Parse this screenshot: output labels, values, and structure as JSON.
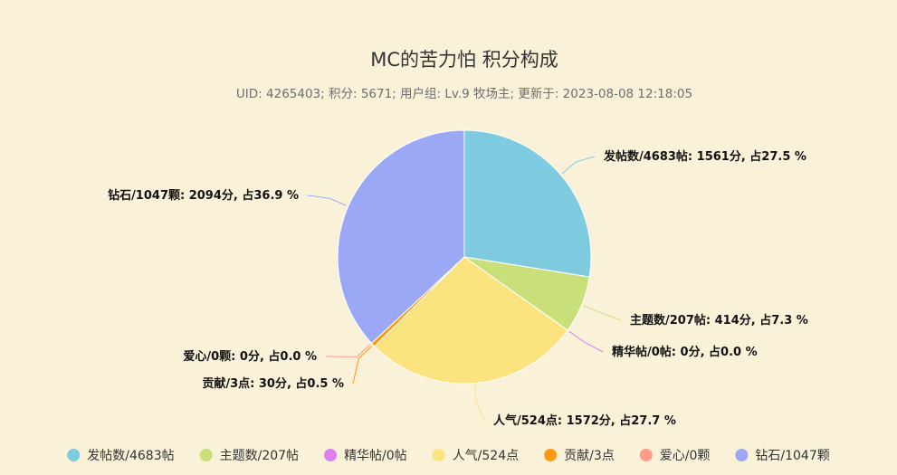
{
  "chart_data": {
    "type": "pie",
    "title": "MC的苦力怕 积分构成",
    "subtitle": "UID: 4265403; 积分: 5671; 用户组: Lv.9 牧场主; 更新于: 2023-08-08 12:18:05",
    "series": [
      {
        "name": "发帖数/4683帖",
        "value": 1561,
        "percent": 27.5,
        "label": "发帖数/4683帖: 1561分, 占27.5 %",
        "color": "#7ecbe0"
      },
      {
        "name": "主题数/207帖",
        "value": 414,
        "percent": 7.3,
        "label": "主题数/207帖: 414分, 占7.3 %",
        "color": "#c9e07a"
      },
      {
        "name": "精华帖/0帖",
        "value": 0,
        "percent": 0.0,
        "label": "精华帖/0帖: 0分, 占0.0 %",
        "color": "#e07ff0"
      },
      {
        "name": "人气/524点",
        "value": 1572,
        "percent": 27.7,
        "label": "人气/524点: 1572分, 占27.7 %",
        "color": "#fbe480"
      },
      {
        "name": "贡献/3点",
        "value": 30,
        "percent": 0.5,
        "label": "贡献/3点: 30分, 占0.5 %",
        "color": "#ff9912"
      },
      {
        "name": "爱心/0颗",
        "value": 0,
        "percent": 0.0,
        "label": "爱心/0颗: 0分, 占0.0 %",
        "color": "#ff9c8a"
      },
      {
        "name": "钻石/1047颗",
        "value": 2094,
        "percent": 36.9,
        "label": "钻石/1047颗: 2094分, 占36.9 %",
        "color": "#9ba8f6"
      }
    ],
    "legend_position": "bottom"
  }
}
